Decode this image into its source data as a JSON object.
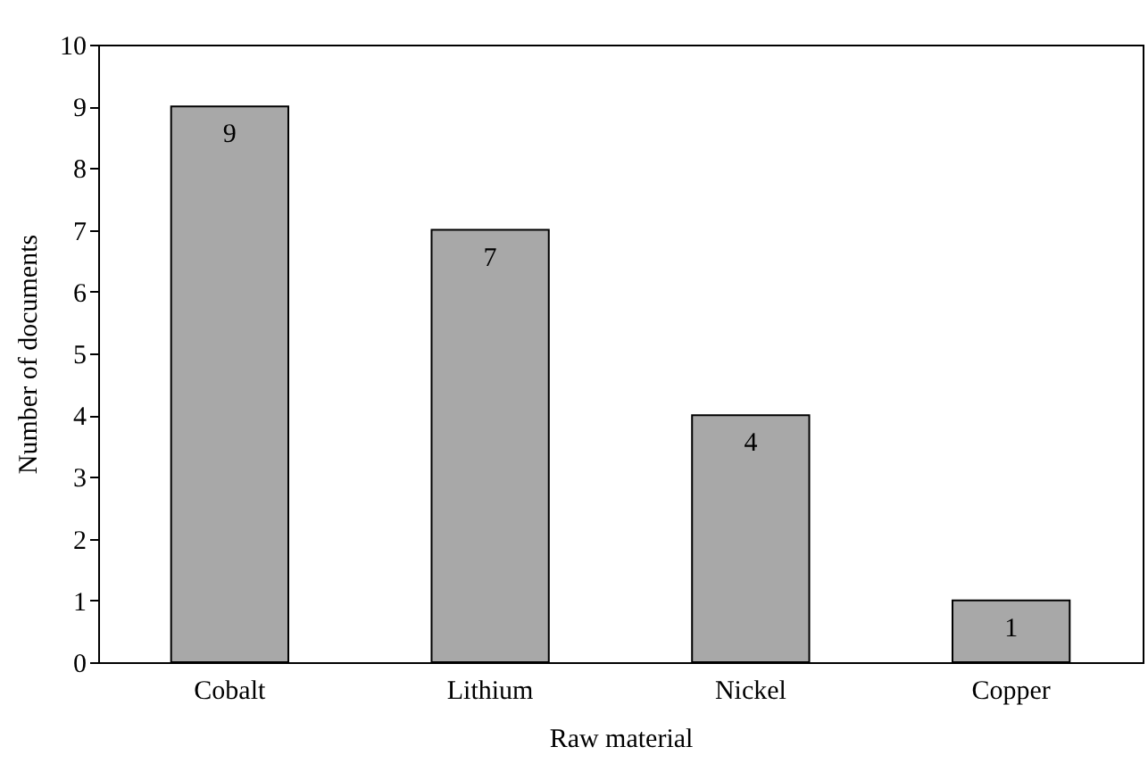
{
  "chart_data": {
    "type": "bar",
    "xlabel": "Raw material",
    "ylabel": "Number of documents",
    "categories": [
      "Cobalt",
      "Lithium",
      "Nickel",
      "Copper"
    ],
    "values": [
      9,
      7,
      4,
      1
    ],
    "color": "#a8a8a8",
    "ylim": [
      0,
      10
    ],
    "yticks": [
      0,
      1,
      2,
      3,
      4,
      5,
      6,
      7,
      8,
      9,
      10
    ],
    "grid": false,
    "data_labels": true
  }
}
